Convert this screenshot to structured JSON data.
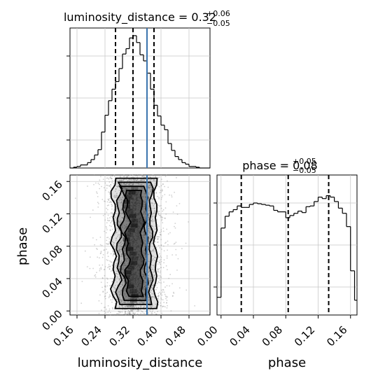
{
  "chart_data": [
    {
      "type": "histogram",
      "panel": "top-left",
      "title": {
        "param": "luminosity_distance",
        "value": "0.32",
        "plus": "+0.06",
        "minus": "−0.05"
      },
      "xlim": [
        0.14,
        0.54
      ],
      "grid": true,
      "bin_edges": [
        0.14,
        0.15,
        0.16,
        0.17,
        0.18,
        0.19,
        0.2,
        0.21,
        0.22,
        0.23,
        0.24,
        0.25,
        0.26,
        0.27,
        0.28,
        0.29,
        0.3,
        0.31,
        0.32,
        0.33,
        0.34,
        0.35,
        0.36,
        0.37,
        0.38,
        0.39,
        0.4,
        0.41,
        0.42,
        0.43,
        0.44,
        0.45,
        0.46,
        0.47,
        0.48,
        0.49,
        0.5,
        0.51,
        0.52,
        0.53,
        0.54
      ],
      "counts": [
        0,
        1,
        2,
        4,
        4,
        7,
        11,
        17,
        24,
        47,
        69,
        88,
        103,
        113,
        130,
        149,
        156,
        170,
        173,
        164,
        148,
        140,
        124,
        103,
        82,
        68,
        56,
        50,
        32,
        23,
        15,
        11,
        7,
        5,
        2,
        2,
        1,
        0,
        0,
        0
      ],
      "count_max": 183,
      "quantile_lines": [
        0.27,
        0.32,
        0.38
      ],
      "truth": 0.36
    },
    {
      "type": "histogram",
      "panel": "bottom-right",
      "title": {
        "param": "phase",
        "value": "0.08",
        "plus": "+0.05",
        "minus": "−0.05"
      },
      "xlim": [
        -0.005,
        0.168
      ],
      "xlabel": "phase",
      "xticks": [
        "0.00",
        "0.04",
        "0.08",
        "0.12",
        "0.16"
      ],
      "xtick_values": [
        0.0,
        0.04,
        0.08,
        0.12,
        0.16
      ],
      "grid": true,
      "bin_edges": [
        -0.005,
        0.0,
        0.005,
        0.01,
        0.015,
        0.02,
        0.025,
        0.03,
        0.035,
        0.04,
        0.045,
        0.05,
        0.055,
        0.06,
        0.065,
        0.07,
        0.075,
        0.08,
        0.085,
        0.09,
        0.095,
        0.1,
        0.105,
        0.11,
        0.115,
        0.12,
        0.125,
        0.13,
        0.135,
        0.14,
        0.145,
        0.15,
        0.155,
        0.16,
        0.165,
        0.168
      ],
      "counts": [
        24,
        118,
        134,
        140,
        143,
        148,
        146,
        146,
        150,
        152,
        151,
        150,
        149,
        148,
        142,
        140,
        140,
        132,
        135,
        138,
        141,
        139,
        147,
        148,
        154,
        160,
        158,
        162,
        160,
        154,
        145,
        138,
        120,
        60,
        20
      ],
      "count_max": 190,
      "quantile_lines": [
        0.025,
        0.083,
        0.133
      ]
    },
    {
      "type": "scatter_density",
      "panel": "bottom-left",
      "xlabel": "luminosity_distance",
      "ylabel": "phase",
      "xlim": [
        0.14,
        0.54
      ],
      "ylim": [
        -0.005,
        0.168
      ],
      "xticks": [
        "0.16",
        "0.24",
        "0.32",
        "0.40",
        "0.48"
      ],
      "xtick_values": [
        0.16,
        0.24,
        0.32,
        0.4,
        0.48
      ],
      "yticks": [
        "0.00",
        "0.04",
        "0.08",
        "0.12",
        "0.16"
      ],
      "ytick_values": [
        0.0,
        0.04,
        0.08,
        0.12,
        0.16
      ],
      "grid": true,
      "truth_x": 0.36,
      "x_mean": 0.325,
      "x_sd": 0.045,
      "points": 2600,
      "contour_levels": 4
    }
  ],
  "colors": {
    "histogram": "#000000",
    "quantile": "#000000",
    "truth": "#3b75af",
    "grid": "#c9c9c9",
    "points": "#9a9a9a",
    "contour_fill": "#000000"
  }
}
